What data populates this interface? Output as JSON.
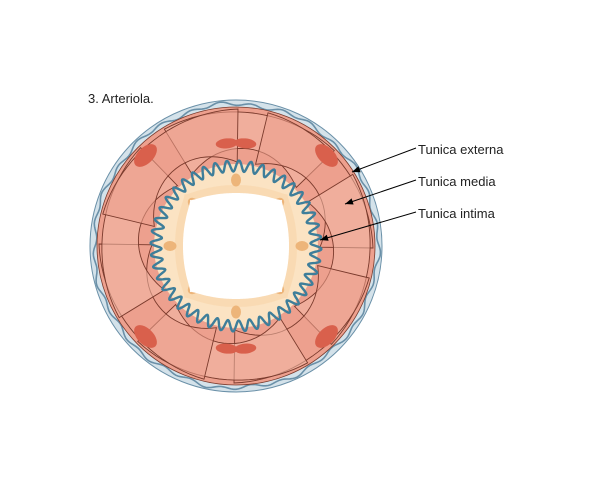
{
  "figure": {
    "title": "3. Arteriola."
  },
  "labels": {
    "externa": "Tunica externa",
    "media": "Tunica media",
    "intima": "Tunica intima"
  },
  "colors": {
    "externa_fill": "#d4e2ea",
    "externa_stroke": "#6a90a8",
    "media_fill": "#eda08e",
    "media_light": "#f2b9a7",
    "media_line": "#7a3a2c",
    "muscle_nucleus": "#d9604c",
    "intima_fill": "#fbe3c3",
    "intima_nucleus": "#edb57a",
    "elastic_lamina": "#3e7e9a",
    "leader": "#000000"
  }
}
